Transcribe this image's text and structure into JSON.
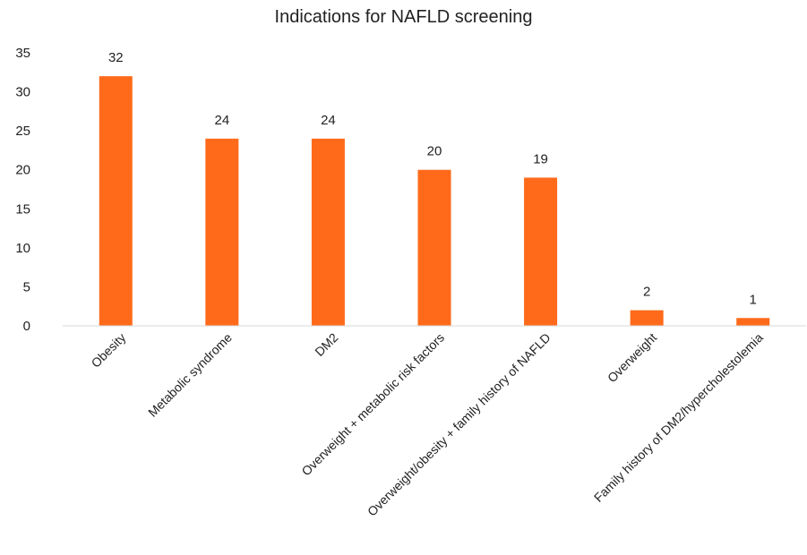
{
  "chart_data": {
    "type": "bar",
    "title": "Indications for NAFLD screening",
    "categories": [
      "Obesity",
      "Metabolic syndrome",
      "DM2",
      "Overweight + metabolic risk factors",
      "Overweight/obesity + family history of NAFLD",
      "Overweight",
      "Family history of DM2/hypercholestolemia"
    ],
    "values": [
      32,
      24,
      24,
      20,
      19,
      2,
      1
    ],
    "data_labels": [
      "32",
      "24",
      "24",
      "20",
      "19",
      "2",
      "1"
    ],
    "ylim": [
      0,
      35
    ],
    "yticks": [
      0,
      5,
      10,
      15,
      20,
      25,
      30,
      35
    ],
    "ytick_labels": [
      "0",
      "5",
      "10",
      "15",
      "20",
      "25",
      "30",
      "35"
    ],
    "xlabel": "",
    "ylabel": "",
    "grid": false,
    "legend": "none",
    "colors": {
      "bar": "#ff6a1a",
      "axis": "#d9d9d9",
      "text": "#222222"
    }
  }
}
